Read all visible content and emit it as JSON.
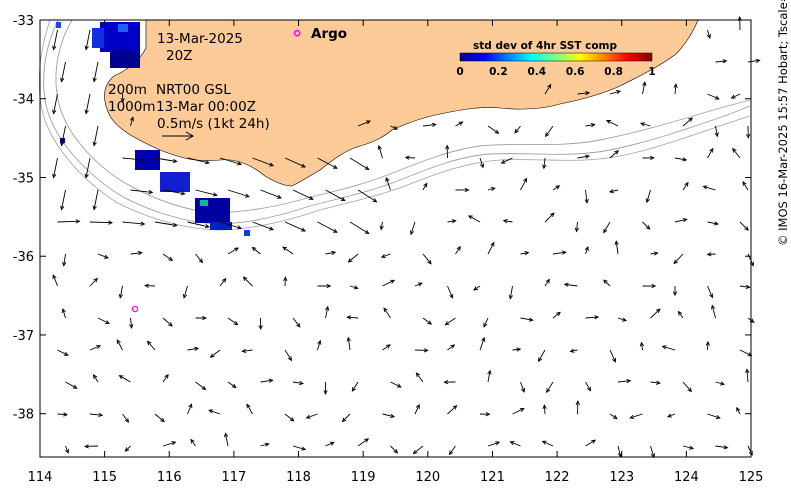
{
  "title": {
    "date": "13-Mar-2025",
    "hour": "20Z"
  },
  "legend": {
    "depth_200": "200m",
    "depth_1000": "1000m",
    "product": "NRT00 GSL",
    "product_time": "13-Mar 00:00Z",
    "scale_label": "0.5m/s (1kt 24h)",
    "argo_label": "Argo"
  },
  "colorbar": {
    "title": "std dev of 4hr SST comp",
    "ticks": [
      "0",
      "0.2",
      "0.4",
      "0.6",
      "0.8",
      "1"
    ],
    "colors": [
      "#00008f",
      "#0000ff",
      "#0080ff",
      "#00ffff",
      "#80ff80",
      "#ffff00",
      "#ff8000",
      "#ff0000",
      "#800000"
    ]
  },
  "axes": {
    "x_ticks": [
      "114",
      "115",
      "116",
      "117",
      "118",
      "119",
      "120",
      "121",
      "122",
      "123",
      "124",
      "125"
    ],
    "y_ticks": [
      "-33",
      "-34",
      "-35",
      "-36",
      "-37",
      "-38"
    ],
    "lon_range": [
      114,
      125
    ],
    "lat_range": [
      -38.55,
      -33
    ]
  },
  "argo_floats": [
    {
      "lon": 115.47,
      "lat": -36.67
    },
    {
      "lon": 117.98,
      "lat": -33.17
    }
  ],
  "credit": "© IMOS 16-Mar-2025 15:57 Hobart; Tscale=CARS+[-1 1]",
  "colors": {
    "land": "#fdcb98",
    "argo": "#ff00ff",
    "isobath": "#a0a0a0"
  }
}
